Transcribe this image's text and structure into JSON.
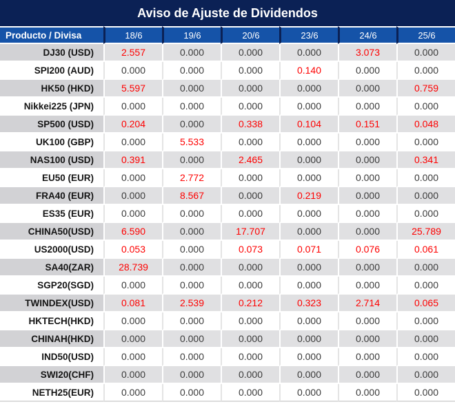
{
  "title": "Aviso de Ajuste de Dividendos",
  "chart_data": {
    "type": "table",
    "title": "Aviso de Ajuste de Dividendos",
    "columns": [
      "Producto / Divisa",
      "18/6",
      "19/6",
      "20/6",
      "23/6",
      "24/6",
      "25/6"
    ],
    "rows": [
      {
        "product": "DJ30 (USD)",
        "values": [
          "2.557",
          "0.000",
          "0.000",
          "0.000",
          "3.073",
          "0.000"
        ]
      },
      {
        "product": "SPI200 (AUD)",
        "values": [
          "0.000",
          "0.000",
          "0.000",
          "0.140",
          "0.000",
          "0.000"
        ]
      },
      {
        "product": "HK50 (HKD)",
        "values": [
          "5.597",
          "0.000",
          "0.000",
          "0.000",
          "0.000",
          "0.759"
        ]
      },
      {
        "product": "Nikkei225 (JPN)",
        "values": [
          "0.000",
          "0.000",
          "0.000",
          "0.000",
          "0.000",
          "0.000"
        ]
      },
      {
        "product": "SP500 (USD)",
        "values": [
          "0.204",
          "0.000",
          "0.338",
          "0.104",
          "0.151",
          "0.048"
        ]
      },
      {
        "product": "UK100 (GBP)",
        "values": [
          "0.000",
          "5.533",
          "0.000",
          "0.000",
          "0.000",
          "0.000"
        ]
      },
      {
        "product": "NAS100 (USD)",
        "values": [
          "0.391",
          "0.000",
          "2.465",
          "0.000",
          "0.000",
          "0.341"
        ]
      },
      {
        "product": "EU50 (EUR)",
        "values": [
          "0.000",
          "2.772",
          "0.000",
          "0.000",
          "0.000",
          "0.000"
        ]
      },
      {
        "product": "FRA40 (EUR)",
        "values": [
          "0.000",
          "8.567",
          "0.000",
          "0.219",
          "0.000",
          "0.000"
        ]
      },
      {
        "product": "ES35 (EUR)",
        "values": [
          "0.000",
          "0.000",
          "0.000",
          "0.000",
          "0.000",
          "0.000"
        ]
      },
      {
        "product": "CHINA50(USD)",
        "values": [
          "6.590",
          "0.000",
          "17.707",
          "0.000",
          "0.000",
          "25.789"
        ]
      },
      {
        "product": "US2000(USD)",
        "values": [
          "0.053",
          "0.000",
          "0.073",
          "0.071",
          "0.076",
          "0.061"
        ]
      },
      {
        "product": "SA40(ZAR)",
        "values": [
          "28.739",
          "0.000",
          "0.000",
          "0.000",
          "0.000",
          "0.000"
        ]
      },
      {
        "product": "SGP20(SGD)",
        "values": [
          "0.000",
          "0.000",
          "0.000",
          "0.000",
          "0.000",
          "0.000"
        ]
      },
      {
        "product": "TWINDEX(USD)",
        "values": [
          "0.081",
          "2.539",
          "0.212",
          "0.323",
          "2.714",
          "0.065"
        ]
      },
      {
        "product": "HKTECH(HKD)",
        "values": [
          "0.000",
          "0.000",
          "0.000",
          "0.000",
          "0.000",
          "0.000"
        ]
      },
      {
        "product": "CHINAH(HKD)",
        "values": [
          "0.000",
          "0.000",
          "0.000",
          "0.000",
          "0.000",
          "0.000"
        ]
      },
      {
        "product": "IND50(USD)",
        "values": [
          "0.000",
          "0.000",
          "0.000",
          "0.000",
          "0.000",
          "0.000"
        ]
      },
      {
        "product": "SWI20(CHF)",
        "values": [
          "0.000",
          "0.000",
          "0.000",
          "0.000",
          "0.000",
          "0.000"
        ]
      },
      {
        "product": "NETH25(EUR)",
        "values": [
          "0.000",
          "0.000",
          "0.000",
          "0.000",
          "0.000",
          "0.000"
        ]
      }
    ],
    "layout": {
      "zebra_striping": true,
      "first_row_shade": "gray",
      "highlight_rule": "non-zero values shown in red"
    }
  },
  "colors": {
    "title_bar_bg": "#0B2155",
    "header_row_bg": "#1553A8",
    "header_text": "#FFFFFF",
    "gray_row_bg": "#E0E0E2",
    "gray_row_product_bg": "#D2D2D5",
    "white_row_bg": "#FFFFFF",
    "zero_value_text": "#3A3A3A",
    "highlight_value_text": "#FE0000"
  }
}
